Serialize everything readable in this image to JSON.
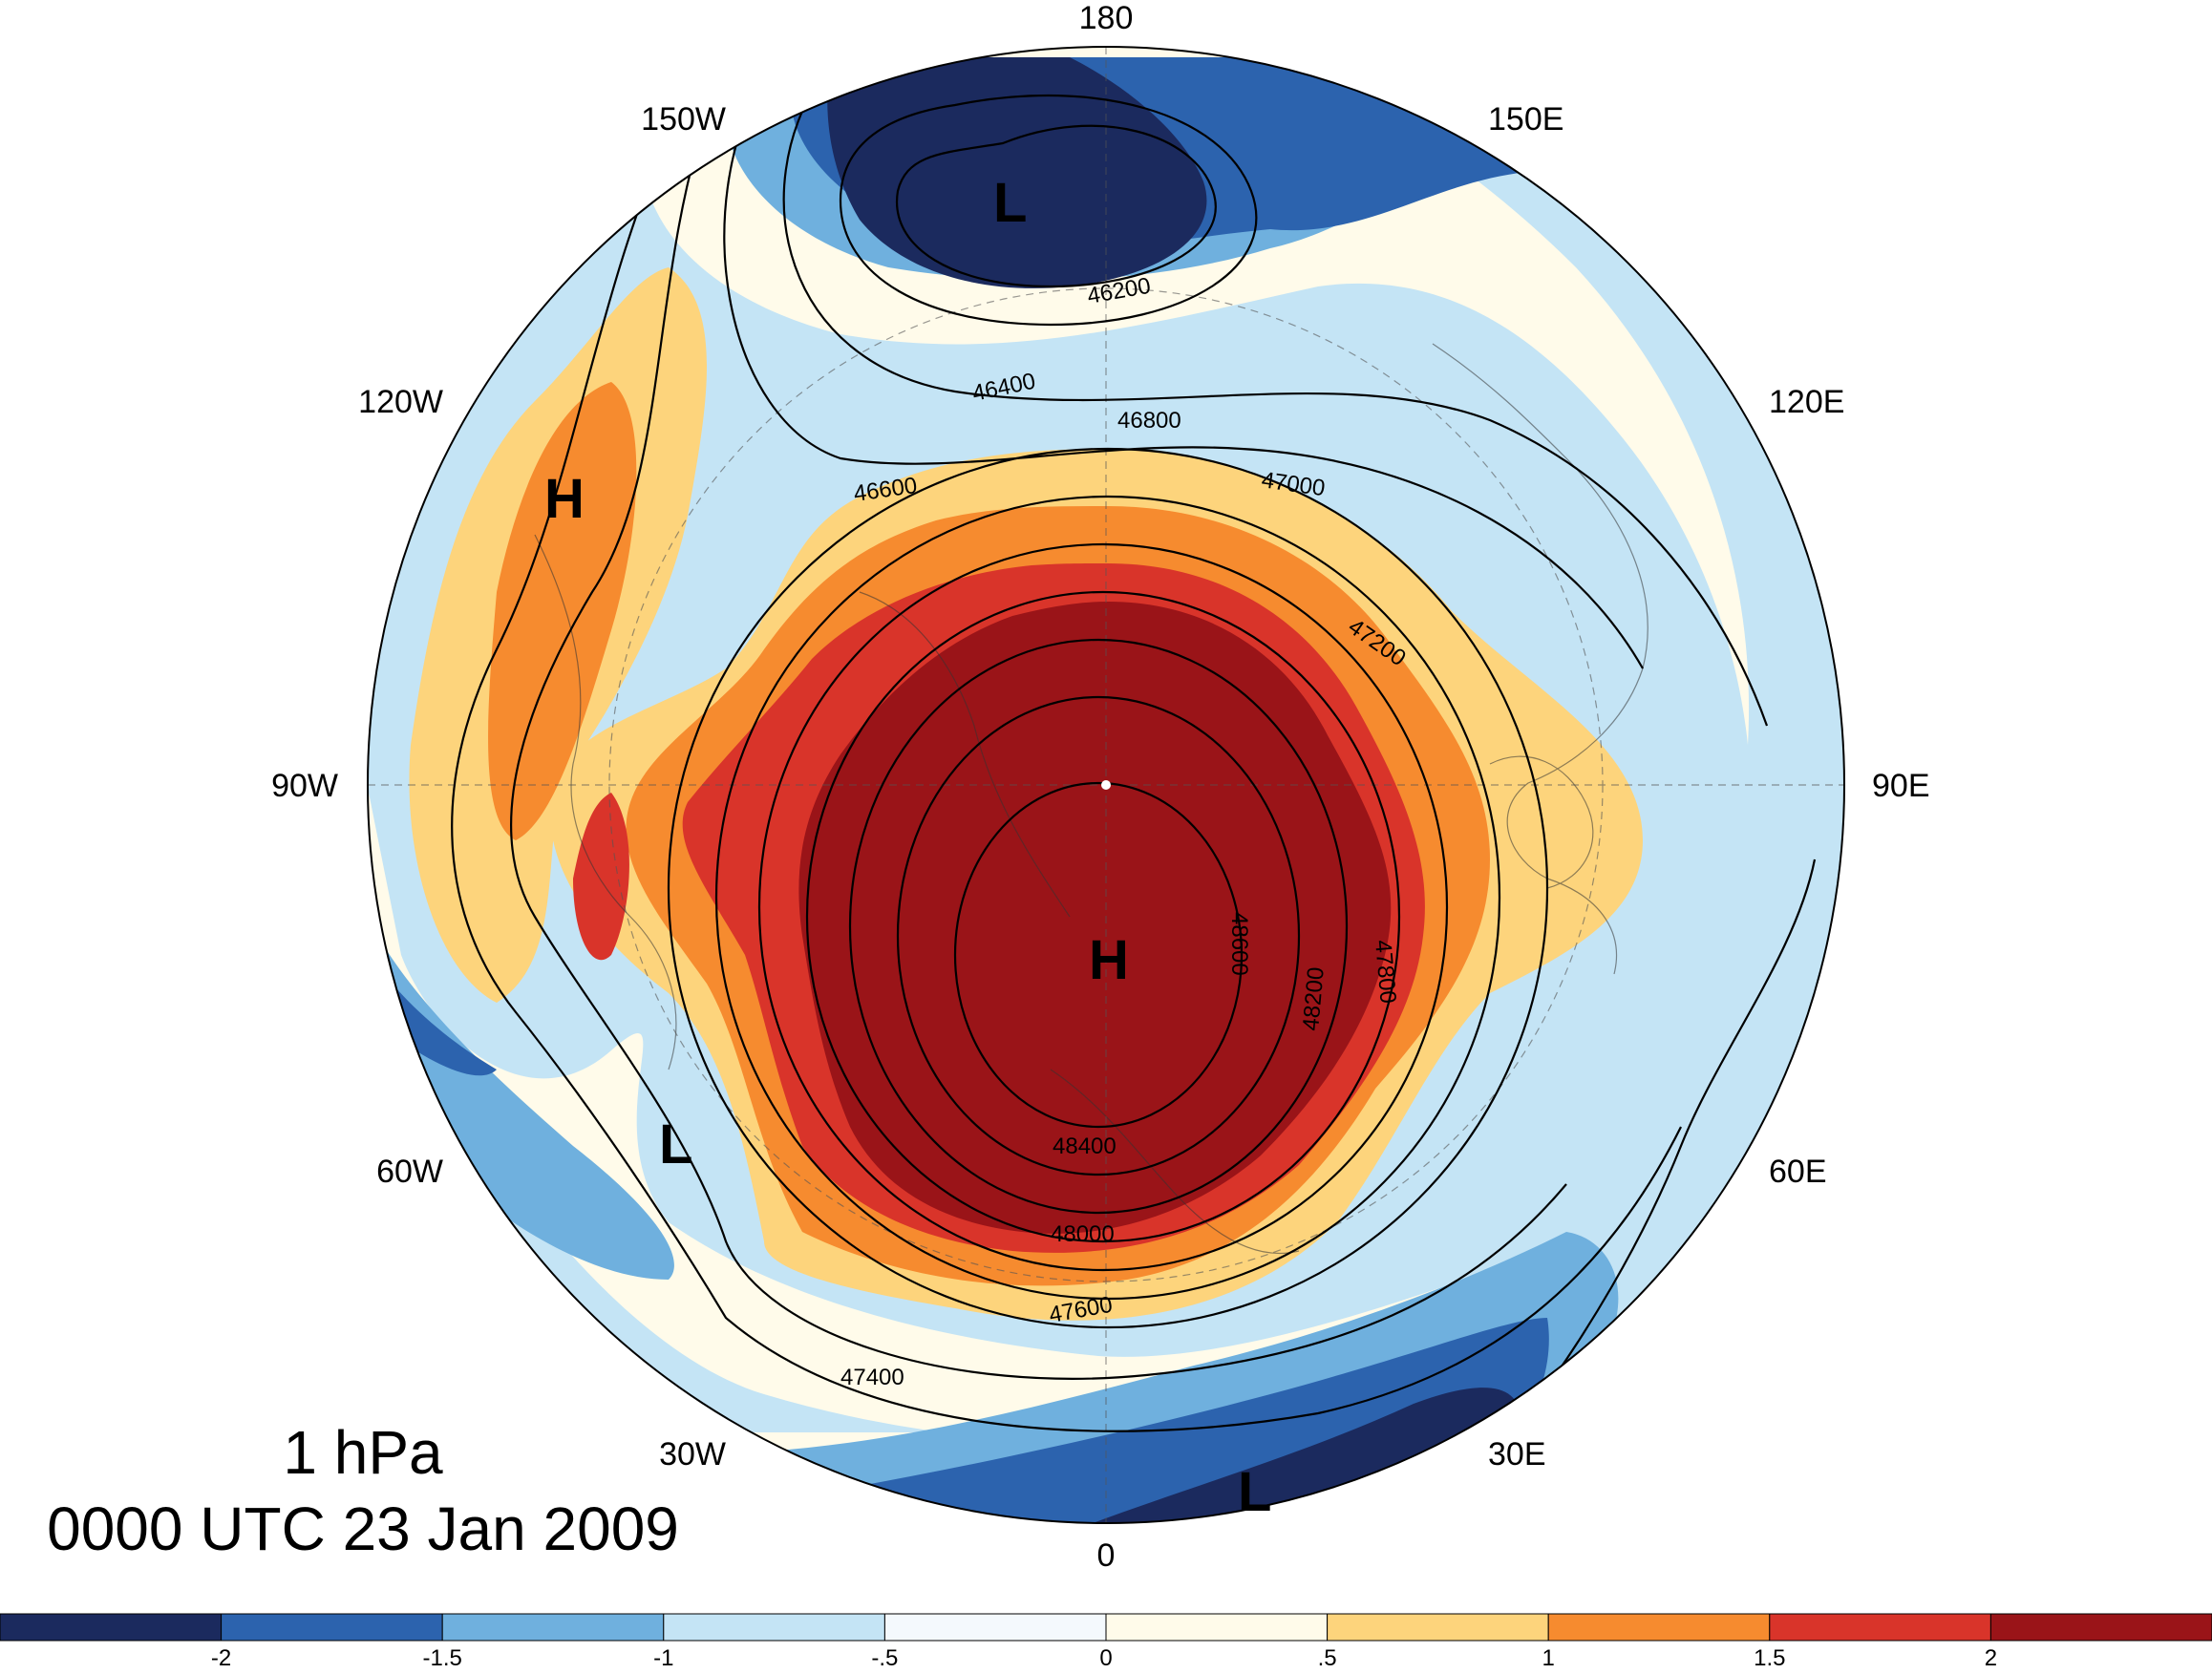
{
  "title": {
    "level": "1 hPa",
    "time": "0000 UTC 23 Jan 2009"
  },
  "longitude_labels": [
    "180",
    "150E",
    "120E",
    "90E",
    "60E",
    "30E",
    "0",
    "30W",
    "60W",
    "90W",
    "120W",
    "150W"
  ],
  "contour_labels": [
    "46200",
    "46400",
    "46600",
    "46800",
    "47000",
    "47200",
    "47400",
    "47600",
    "47800",
    "48000",
    "48200",
    "48400",
    "48600"
  ],
  "pressure_centers": [
    "H",
    "H",
    "L",
    "L",
    "L"
  ],
  "colorbar": {
    "tick_labels": [
      "-2",
      "-1.5",
      "-1",
      "-.5",
      "0",
      ".5",
      "1",
      "1.5",
      "2"
    ],
    "colors": [
      "#1b2a5e",
      "#2c63ae",
      "#6fb0de",
      "#c4e4f5",
      "#f4f9fd",
      "#fffbea",
      "#fdd47c",
      "#f68b2f",
      "#d9342a",
      "#9a1418"
    ]
  }
}
